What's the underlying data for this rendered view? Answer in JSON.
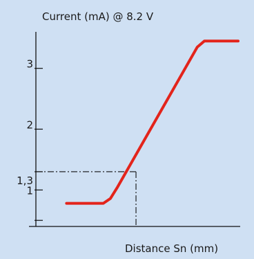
{
  "chart_data": {
    "type": "line",
    "title": "Current (mA) @ 8.2 V",
    "xlabel": "Distance Sn (mm)",
    "ylabel": "",
    "ylim": [
      0.4,
      3.6
    ],
    "xlim": [
      0,
      10
    ],
    "y_ticks": [
      {
        "value": 3,
        "label": "3"
      },
      {
        "value": 2,
        "label": "2"
      },
      {
        "value": 1.3,
        "label": "1,3"
      },
      {
        "value": 1,
        "label": "1"
      },
      {
        "value": 0.5,
        "label": ""
      }
    ],
    "series": [
      {
        "color": "#e3241b",
        "points": [
          {
            "x": 1.5,
            "y": 0.78
          },
          {
            "x": 3.3,
            "y": 0.78
          },
          {
            "x": 3.65,
            "y": 0.86
          },
          {
            "x": 4.0,
            "y": 1.05
          },
          {
            "x": 7.9,
            "y": 3.35
          },
          {
            "x": 8.25,
            "y": 3.45
          },
          {
            "x": 9.9,
            "y": 3.45
          }
        ]
      }
    ],
    "reference": {
      "x": 4.9,
      "y": 1.3
    },
    "grid": false,
    "legend": "none"
  }
}
